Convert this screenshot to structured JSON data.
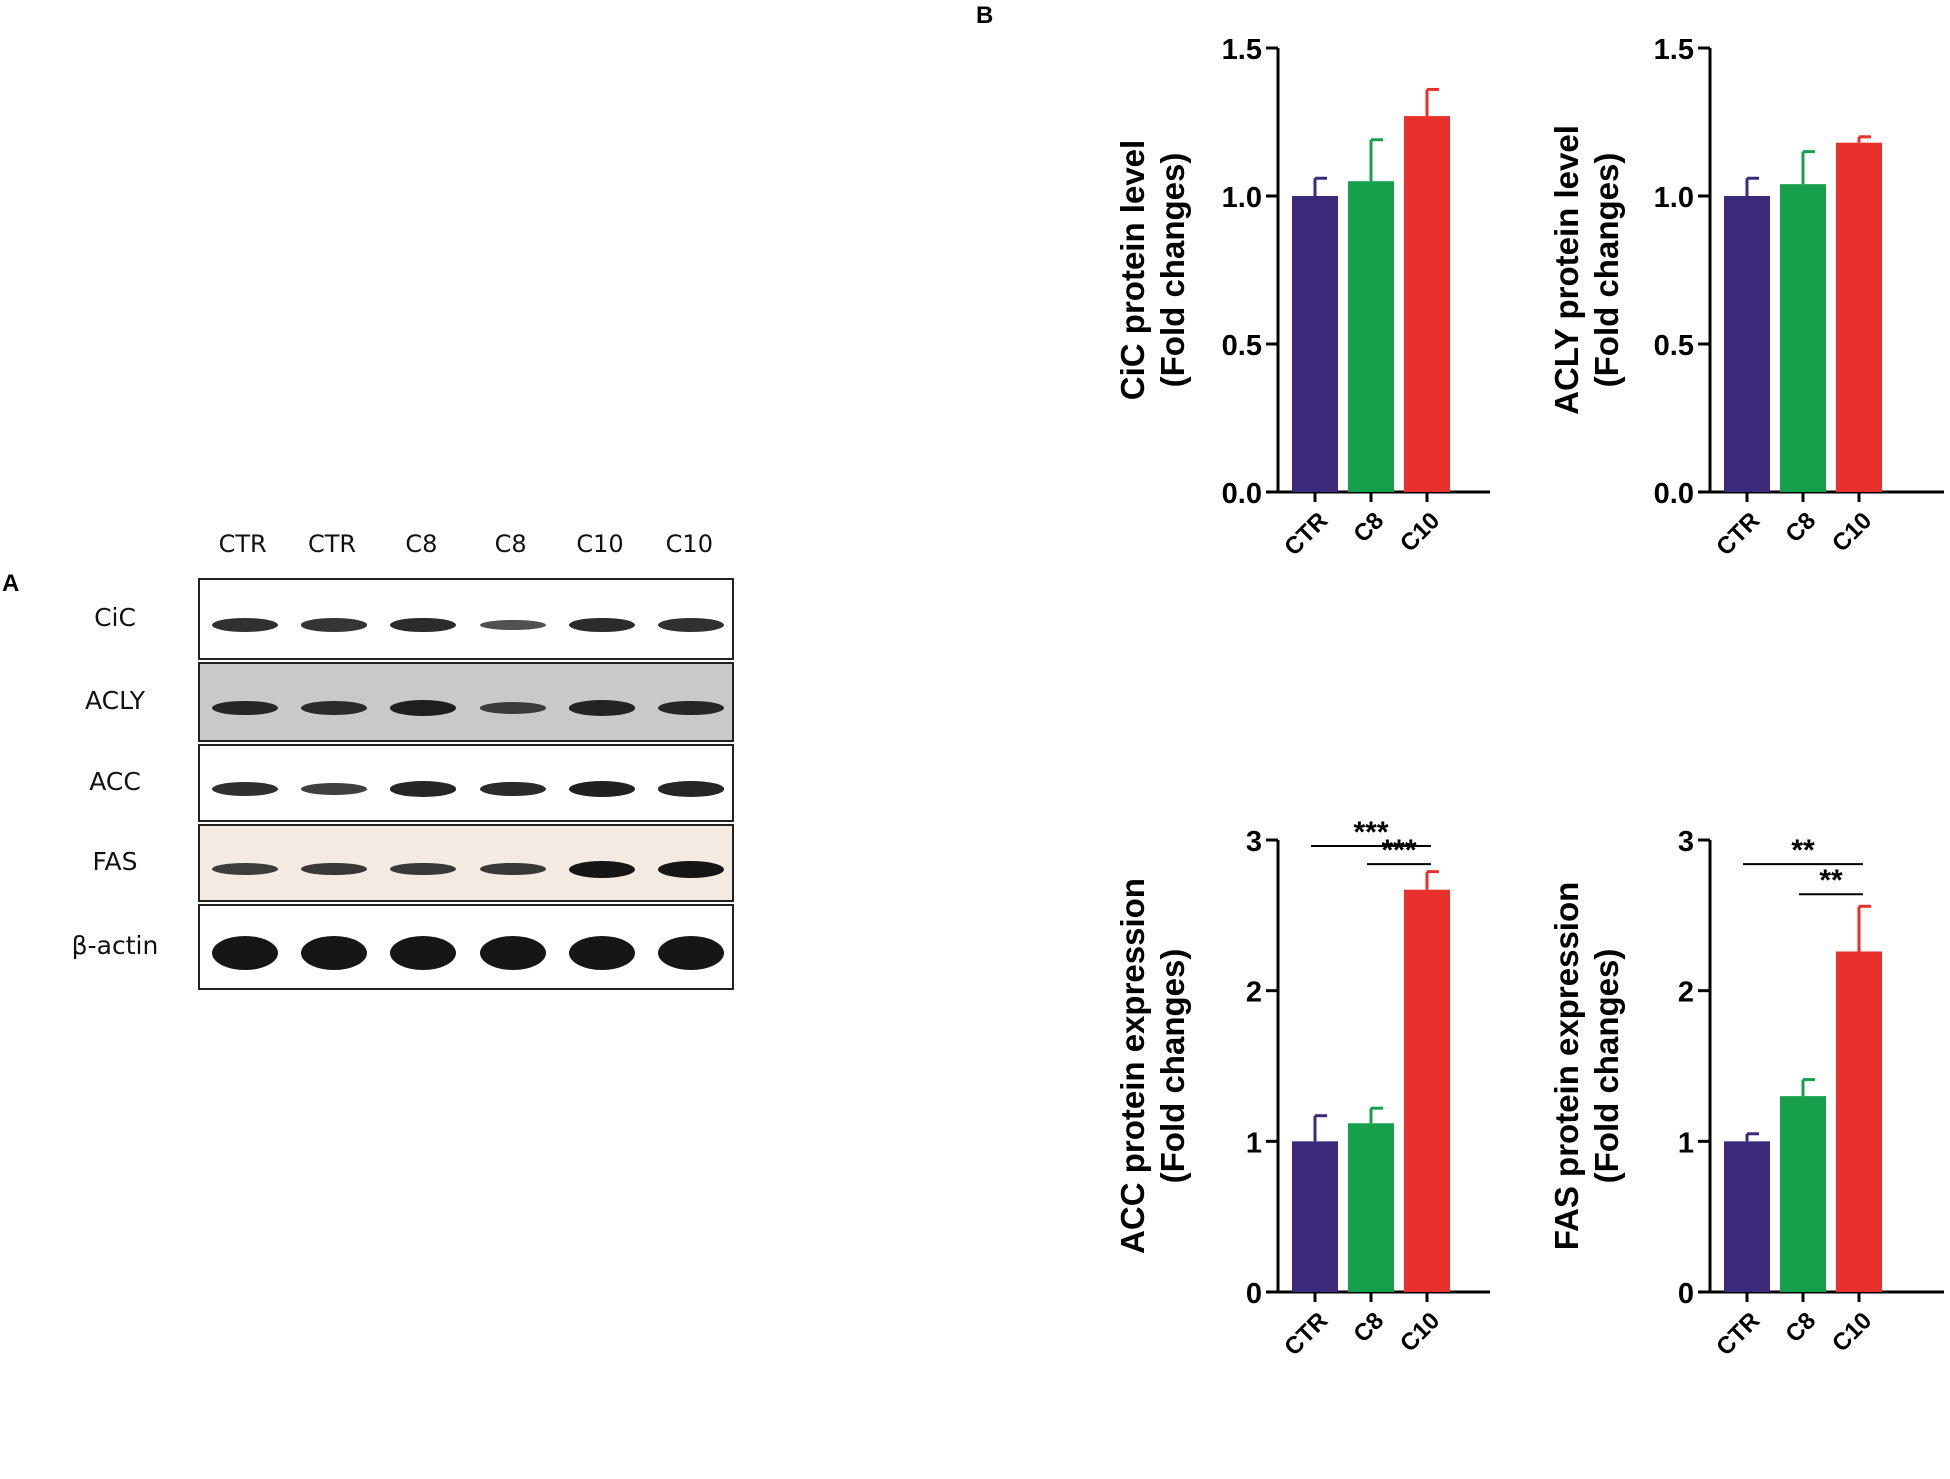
{
  "panels": {
    "a_label": "A",
    "b_label": "B"
  },
  "western_blot": {
    "lanes": [
      "CTR",
      "CTR",
      "C8",
      "C8",
      "C10",
      "C10"
    ],
    "rows": [
      {
        "protein": "CiC",
        "background": "#ffffff",
        "band_intensity": [
          0.75,
          0.7,
          0.8,
          0.45,
          0.8,
          0.75
        ]
      },
      {
        "protein": "ACLY",
        "background": "#c9c9c9",
        "band_intensity": [
          0.8,
          0.75,
          0.9,
          0.55,
          0.85,
          0.8
        ]
      },
      {
        "protein": "ACC",
        "background": "#ffffff",
        "band_intensity": [
          0.75,
          0.6,
          0.85,
          0.8,
          0.9,
          0.85
        ]
      },
      {
        "protein": "FAS",
        "background": "#f3ebe1",
        "band_intensity": [
          0.6,
          0.65,
          0.65,
          0.65,
          1.0,
          1.0
        ]
      },
      {
        "protein": "β-actin",
        "background": "#ffffff",
        "band_intensity": [
          1.0,
          1.0,
          1.0,
          1.0,
          1.0,
          1.0
        ]
      }
    ]
  },
  "colors": {
    "CTR": "#3b2a7a",
    "C8": "#16a04c",
    "C10": "#e8302c",
    "axis": "#000000"
  },
  "chart_data": [
    {
      "type": "bar",
      "categories": [
        "CTR",
        "C8",
        "C10"
      ],
      "values": [
        1.0,
        1.05,
        1.27
      ],
      "errors": [
        0.06,
        0.14,
        0.09
      ],
      "ylabel": "CiC protein level",
      "ylabel2": "(Fold changes)",
      "ylim": [
        0,
        1.5
      ],
      "yticks": [
        "0.0",
        "0.5",
        "1.0",
        "1.5"
      ],
      "significance": []
    },
    {
      "type": "bar",
      "categories": [
        "CTR",
        "C8",
        "C10"
      ],
      "values": [
        1.0,
        1.04,
        1.18
      ],
      "errors": [
        0.06,
        0.11,
        0.02
      ],
      "ylabel": "ACLY protein level",
      "ylabel2": "(Fold changes)",
      "ylim": [
        0,
        1.5
      ],
      "yticks": [
        "0.0",
        "0.5",
        "1.0",
        "1.5"
      ],
      "significance": []
    },
    {
      "type": "bar",
      "categories": [
        "CTR",
        "C8",
        "C10"
      ],
      "values": [
        1.0,
        1.12,
        2.67
      ],
      "errors": [
        0.17,
        0.1,
        0.12
      ],
      "ylabel": "ACC protein expression",
      "ylabel2": "(Fold changes)",
      "ylim": [
        0,
        3
      ],
      "yticks": [
        "0",
        "1",
        "2",
        "3"
      ],
      "significance": [
        {
          "from": 0,
          "to": 2,
          "y": 2.96,
          "label": "***"
        },
        {
          "from": 1,
          "to": 2,
          "y": 2.84,
          "label": "***"
        }
      ]
    },
    {
      "type": "bar",
      "categories": [
        "CTR",
        "C8",
        "C10"
      ],
      "values": [
        1.0,
        1.3,
        2.26
      ],
      "errors": [
        0.05,
        0.11,
        0.3
      ],
      "ylabel": "FAS protein expression",
      "ylabel2": "(Fold changes)",
      "ylim": [
        0,
        3
      ],
      "yticks": [
        "0",
        "1",
        "2",
        "3"
      ],
      "significance": [
        {
          "from": 0,
          "to": 2,
          "y": 2.84,
          "label": "**"
        },
        {
          "from": 1,
          "to": 2,
          "y": 2.64,
          "label": "**"
        }
      ]
    }
  ]
}
